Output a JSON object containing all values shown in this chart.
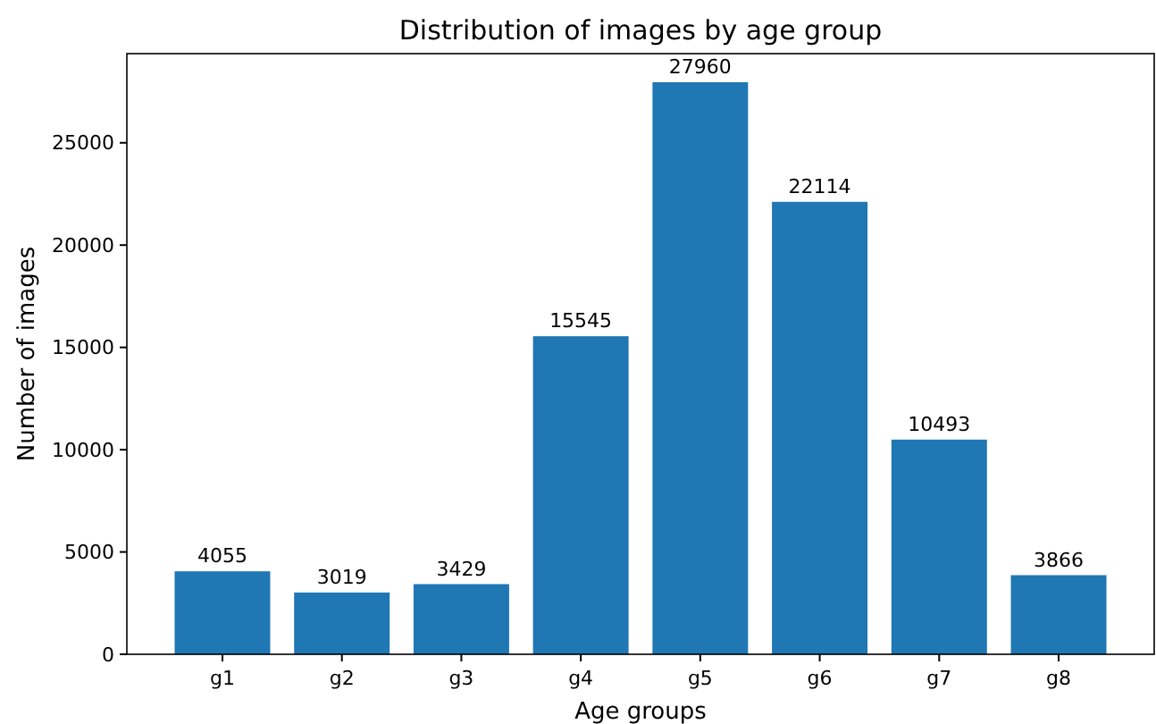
{
  "chart_data": {
    "type": "bar",
    "title": "Distribution of images by age group",
    "xlabel": "Age groups",
    "ylabel": "Number of images",
    "categories": [
      "g1",
      "g2",
      "g3",
      "g4",
      "g5",
      "g6",
      "g7",
      "g8"
    ],
    "values": [
      4055,
      3019,
      3429,
      15545,
      27960,
      22114,
      10493,
      3866
    ],
    "color": "#1f77b4",
    "ylim": [
      0,
      29358
    ],
    "yticks": [
      0,
      5000,
      10000,
      15000,
      20000,
      25000
    ],
    "data_labels": true,
    "grid": false
  }
}
